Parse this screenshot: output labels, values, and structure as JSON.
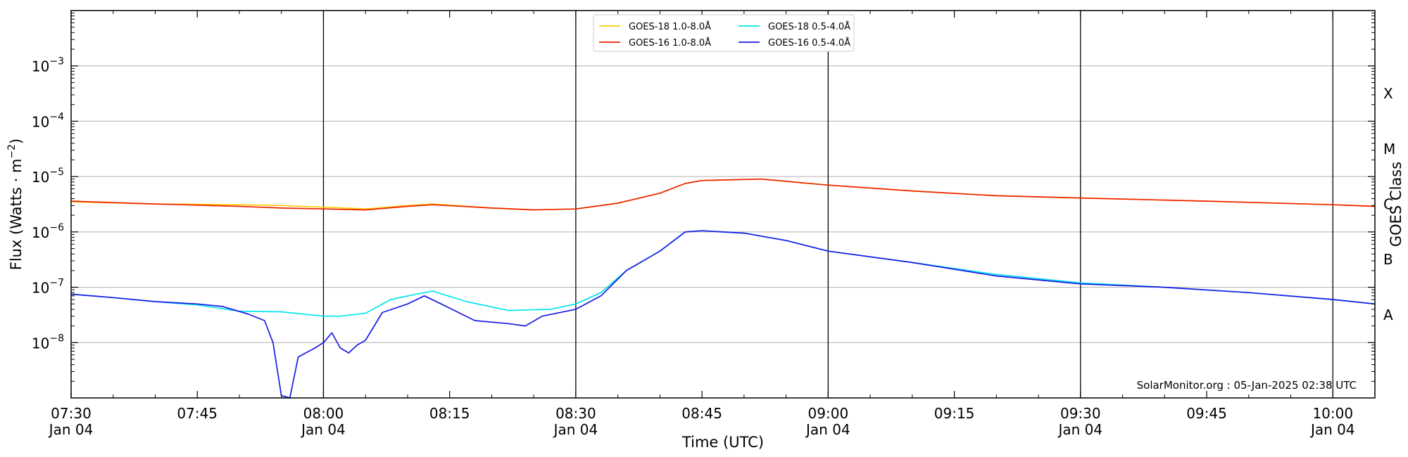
{
  "chart_data": {
    "type": "line",
    "xlabel": "Time (UTC)",
    "ylabel_main": "Flux (Watts · m",
    "ylabel_sup": "−2",
    "ylabel_end": ")",
    "right_axis_label": "GOES Class",
    "credit": "SolarMonitor.org : 05-Jan-2025 02:38 UTC",
    "x_range": [
      "07:30",
      "10:05"
    ],
    "y_range": [
      1e-09,
      0.01
    ],
    "y_scale": "log",
    "grid": "horizontal at decades",
    "legend_position": "top-center",
    "x_ticks": [
      {
        "t": "07:30",
        "line1": "07:30",
        "line2": "Jan 04"
      },
      {
        "t": "07:45",
        "line1": "07:45",
        "line2": ""
      },
      {
        "t": "08:00",
        "line1": "08:00",
        "line2": "Jan 04"
      },
      {
        "t": "08:15",
        "line1": "08:15",
        "line2": ""
      },
      {
        "t": "08:30",
        "line1": "08:30",
        "line2": "Jan 04"
      },
      {
        "t": "08:45",
        "line1": "08:45",
        "line2": ""
      },
      {
        "t": "09:00",
        "line1": "09:00",
        "line2": "Jan 04"
      },
      {
        "t": "09:15",
        "line1": "09:15",
        "line2": ""
      },
      {
        "t": "09:30",
        "line1": "09:30",
        "line2": "Jan 04"
      },
      {
        "t": "09:45",
        "line1": "09:45",
        "line2": ""
      },
      {
        "t": "10:00",
        "line1": "10:00",
        "line2": "Jan 04"
      }
    ],
    "vertical_markers": [
      "08:00",
      "08:30",
      "09:00",
      "09:30",
      "10:00"
    ],
    "y_ticks": [
      {
        "exp": -8,
        "base": "10",
        "sup": "−8"
      },
      {
        "exp": -7,
        "base": "10",
        "sup": "−7"
      },
      {
        "exp": -6,
        "base": "10",
        "sup": "−6"
      },
      {
        "exp": -5,
        "base": "10",
        "sup": "−5"
      },
      {
        "exp": -4,
        "base": "10",
        "sup": "−4"
      },
      {
        "exp": -3,
        "base": "10",
        "sup": "−3"
      }
    ],
    "goes_classes": [
      {
        "label": "A",
        "exp": -7.5
      },
      {
        "label": "B",
        "exp": -6.5
      },
      {
        "label": "C",
        "exp": -5.5
      },
      {
        "label": "M",
        "exp": -4.5
      },
      {
        "label": "X",
        "exp": -3.5
      }
    ],
    "series": [
      {
        "name": "GOES-18 1.0-8.0Å",
        "color": "#ffcc00",
        "points": [
          [
            "07:30",
            3.5e-06
          ],
          [
            "07:40",
            3.2e-06
          ],
          [
            "07:50",
            3.1e-06
          ],
          [
            "07:55",
            3e-06
          ],
          [
            "08:00",
            2.8e-06
          ],
          [
            "08:05",
            2.6e-06
          ],
          [
            "08:10",
            3e-06
          ],
          [
            "08:13",
            3.2e-06
          ],
          [
            "08:20",
            2.7e-06
          ],
          [
            "08:25",
            2.5e-06
          ],
          [
            "08:30",
            2.6e-06
          ],
          [
            "08:35",
            3.3e-06
          ],
          [
            "08:40",
            5e-06
          ],
          [
            "08:43",
            7.5e-06
          ],
          [
            "08:45",
            8.5e-06
          ],
          [
            "08:52",
            9e-06
          ],
          [
            "09:00",
            7e-06
          ],
          [
            "09:10",
            5.5e-06
          ],
          [
            "09:20",
            4.5e-06
          ],
          [
            "09:30",
            4.1e-06
          ],
          [
            "09:45",
            3.6e-06
          ],
          [
            "10:00",
            3.1e-06
          ],
          [
            "10:05",
            2.9e-06
          ]
        ]
      },
      {
        "name": "GOES-16 1.0-8.0Å",
        "color": "#ee2200",
        "points": [
          [
            "07:30",
            3.6e-06
          ],
          [
            "07:40",
            3.2e-06
          ],
          [
            "07:50",
            2.9e-06
          ],
          [
            "07:55",
            2.7e-06
          ],
          [
            "08:00",
            2.6e-06
          ],
          [
            "08:05",
            2.5e-06
          ],
          [
            "08:10",
            2.9e-06
          ],
          [
            "08:13",
            3.1e-06
          ],
          [
            "08:20",
            2.7e-06
          ],
          [
            "08:25",
            2.5e-06
          ],
          [
            "08:30",
            2.6e-06
          ],
          [
            "08:35",
            3.3e-06
          ],
          [
            "08:40",
            5e-06
          ],
          [
            "08:43",
            7.5e-06
          ],
          [
            "08:45",
            8.5e-06
          ],
          [
            "08:52",
            9e-06
          ],
          [
            "09:00",
            7e-06
          ],
          [
            "09:10",
            5.5e-06
          ],
          [
            "09:20",
            4.5e-06
          ],
          [
            "09:30",
            4.1e-06
          ],
          [
            "09:45",
            3.6e-06
          ],
          [
            "10:00",
            3.1e-06
          ],
          [
            "10:05",
            2.9e-06
          ]
        ]
      },
      {
        "name": "GOES-18 0.5-4.0Å",
        "color": "#00e5ee",
        "points": [
          [
            "07:30",
            7.5e-08
          ],
          [
            "07:35",
            6.5e-08
          ],
          [
            "07:40",
            5.5e-08
          ],
          [
            "07:45",
            4.8e-08
          ],
          [
            "07:50",
            3.7e-08
          ],
          [
            "07:55",
            3.6e-08
          ],
          [
            "08:00",
            3e-08
          ],
          [
            "08:02",
            3e-08
          ],
          [
            "08:05",
            3.4e-08
          ],
          [
            "08:08",
            6e-08
          ],
          [
            "08:11",
            7.5e-08
          ],
          [
            "08:13",
            8.5e-08
          ],
          [
            "08:17",
            5.5e-08
          ],
          [
            "08:22",
            3.8e-08
          ],
          [
            "08:27",
            4e-08
          ],
          [
            "08:30",
            5e-08
          ],
          [
            "08:33",
            8e-08
          ],
          [
            "08:36",
            2e-07
          ],
          [
            "08:40",
            4.5e-07
          ],
          [
            "08:43",
            1e-06
          ],
          [
            "08:45",
            1.05e-06
          ],
          [
            "08:50",
            9.5e-07
          ],
          [
            "08:55",
            7e-07
          ],
          [
            "09:00",
            4.5e-07
          ],
          [
            "09:10",
            2.8e-07
          ],
          [
            "09:20",
            1.7e-07
          ],
          [
            "09:30",
            1.2e-07
          ],
          [
            "09:40",
            1e-07
          ],
          [
            "09:50",
            8e-08
          ],
          [
            "10:00",
            6e-08
          ],
          [
            "10:05",
            5e-08
          ]
        ]
      },
      {
        "name": "GOES-16 0.5-4.0Å",
        "color": "#1a1ae6",
        "points": [
          [
            "07:30",
            7.5e-08
          ],
          [
            "07:35",
            6.5e-08
          ],
          [
            "07:40",
            5.5e-08
          ],
          [
            "07:45",
            5e-08
          ],
          [
            "07:48",
            4.5e-08
          ],
          [
            "07:51",
            3.3e-08
          ],
          [
            "07:53",
            2.5e-08
          ],
          [
            "07:54",
            1e-08
          ],
          [
            "07:55",
            1.1e-09
          ],
          [
            "07:56",
            1e-09
          ],
          [
            "07:57",
            5.5e-09
          ],
          [
            "07:59",
            8e-09
          ],
          [
            "08:00",
            1e-08
          ],
          [
            "08:01",
            1.5e-08
          ],
          [
            "08:02",
            8e-09
          ],
          [
            "08:03",
            6.5e-09
          ],
          [
            "08:04",
            9e-09
          ],
          [
            "08:05",
            1.1e-08
          ],
          [
            "08:07",
            3.5e-08
          ],
          [
            "08:10",
            5e-08
          ],
          [
            "08:12",
            7e-08
          ],
          [
            "08:14",
            5e-08
          ],
          [
            "08:18",
            2.5e-08
          ],
          [
            "08:22",
            2.2e-08
          ],
          [
            "08:24",
            2e-08
          ],
          [
            "08:26",
            3e-08
          ],
          [
            "08:30",
            4e-08
          ],
          [
            "08:33",
            7e-08
          ],
          [
            "08:36",
            2e-07
          ],
          [
            "08:40",
            4.5e-07
          ],
          [
            "08:43",
            1e-06
          ],
          [
            "08:45",
            1.05e-06
          ],
          [
            "08:50",
            9.5e-07
          ],
          [
            "08:55",
            7e-07
          ],
          [
            "09:00",
            4.5e-07
          ],
          [
            "09:10",
            2.8e-07
          ],
          [
            "09:20",
            1.6e-07
          ],
          [
            "09:30",
            1.15e-07
          ],
          [
            "09:40",
            1e-07
          ],
          [
            "09:50",
            8e-08
          ],
          [
            "10:00",
            6e-08
          ],
          [
            "10:05",
            5e-08
          ]
        ]
      }
    ]
  }
}
